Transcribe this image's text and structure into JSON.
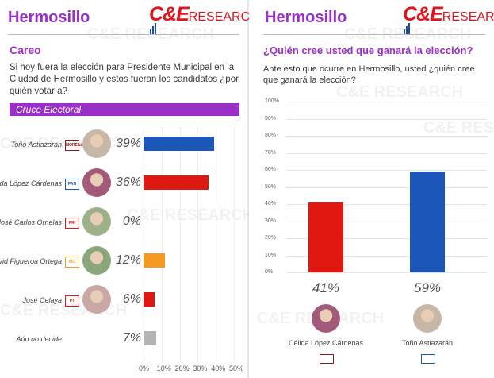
{
  "left_panel": {
    "city": "Hermosillo",
    "brand_ce": "C&E",
    "brand_research": "RESEARCH",
    "section": "Careo",
    "question": "Si hoy fuera la elección para Presidente Municipal en la Ciudad de Hermosillo y estos fueran los candidatos ¿por quién votaría?",
    "banner": "Cruce Electoral",
    "party_logos": [
      "MORENA",
      "PAN",
      "PRI",
      "MC",
      "PT"
    ]
  },
  "right_panel": {
    "city": "Hermosillo",
    "brand_ce": "C&E",
    "brand_research": "RESEARCH",
    "question": "¿Quién cree usted que ganará la elección?",
    "subtext": "Ante esto que ocurre en Hermosillo, usted ¿quién cree que ganará la elección?"
  },
  "chart_data": [
    {
      "type": "bar",
      "orientation": "horizontal",
      "title": "Cruce Electoral",
      "categories": [
        "Toño Astiazaran",
        "Célida López Cárdenas",
        "José Carlos Ornelas",
        "David Figueroa Ortega",
        "José Celaya",
        "Aún no decide"
      ],
      "values": [
        39,
        36,
        0,
        12,
        6,
        7
      ],
      "value_labels": [
        "39%",
        "36%",
        "0%",
        "12%",
        "6%",
        "7%"
      ],
      "colors": [
        "#1c56b8",
        "#e01812",
        "#e01812",
        "#f39a1e",
        "#e01812",
        "#b3b3b3"
      ],
      "xlim": [
        0,
        50
      ],
      "xticks": [
        "0%",
        "10%",
        "20%",
        "30%",
        "40%",
        "50%"
      ]
    },
    {
      "type": "bar",
      "orientation": "vertical",
      "title": "¿Quién cree usted que ganará la elección?",
      "categories": [
        "Célida López Cárdenas",
        "Toño Astiazarán"
      ],
      "values": [
        41,
        59
      ],
      "value_labels": [
        "41%",
        "59%"
      ],
      "colors": [
        "#e01812",
        "#1c56b8"
      ],
      "ylim": [
        0,
        100
      ],
      "yticks": [
        "0%",
        "10%",
        "20%",
        "30%",
        "40%",
        "50%",
        "60%",
        "70%",
        "80%",
        "90%",
        "100%"
      ]
    }
  ]
}
